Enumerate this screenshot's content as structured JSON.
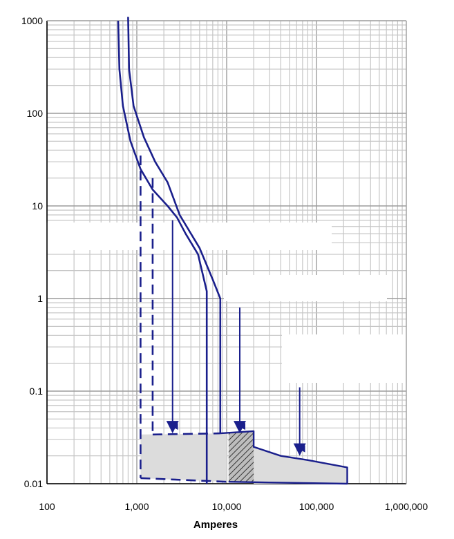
{
  "chart_data": {
    "type": "line",
    "title": "",
    "xlabel": "Amperes",
    "ylabel": "",
    "x_scale": "log",
    "y_scale": "log",
    "xlim": [
      100,
      1000000
    ],
    "ylim": [
      0.01,
      1000
    ],
    "grid": true,
    "x_ticks": [
      {
        "value": 100,
        "label": "100"
      },
      {
        "value": 1000,
        "label": "1,000"
      },
      {
        "value": 10000,
        "label": "10,000"
      },
      {
        "value": 100000,
        "label": "100,000"
      },
      {
        "value": 1000000,
        "label": "1,000,000"
      }
    ],
    "y_ticks": [
      {
        "value": 1000,
        "label": "1000"
      },
      {
        "value": 100,
        "label": "100"
      },
      {
        "value": 10,
        "label": "10"
      },
      {
        "value": 1,
        "label": "1"
      },
      {
        "value": 0.1,
        "label": "0.1"
      },
      {
        "value": 0.01,
        "label": "0.01"
      }
    ],
    "line_color": "#1a1f8c",
    "band_color": "#dcdcdc",
    "series": [
      {
        "style": "solid",
        "points": [
          [
            620,
            1000
          ],
          [
            640,
            300
          ],
          [
            700,
            120
          ],
          [
            850,
            50
          ],
          [
            1100,
            25
          ],
          [
            1500,
            15
          ],
          [
            2200,
            10
          ],
          [
            2800,
            7.5
          ],
          [
            3500,
            5
          ],
          [
            4800,
            3
          ],
          [
            6000,
            1.2
          ],
          [
            6000,
            0.01
          ]
        ]
      },
      {
        "style": "solid",
        "points": [
          [
            800,
            1100
          ],
          [
            820,
            300
          ],
          [
            920,
            120
          ],
          [
            1200,
            55
          ],
          [
            1600,
            30
          ],
          [
            2200,
            18
          ],
          [
            3000,
            8
          ],
          [
            5000,
            3.5
          ],
          [
            7000,
            1.6
          ],
          [
            8500,
            1.0
          ],
          [
            8500,
            0.035
          ]
        ]
      },
      {
        "style": "dashed",
        "points": [
          [
            1100,
            35
          ],
          [
            1100,
            0.0115
          ]
        ]
      },
      {
        "style": "dashed",
        "points": [
          [
            1500,
            20
          ],
          [
            1500,
            0.034
          ]
        ]
      },
      {
        "style": "dashed",
        "points": [
          [
            1100,
            0.0115
          ],
          [
            10000,
            0.0105
          ]
        ]
      },
      {
        "style": "dashed",
        "points": [
          [
            1500,
            0.034
          ],
          [
            8500,
            0.035
          ]
        ]
      }
    ],
    "bands": [
      {
        "fill": "solid",
        "points": [
          [
            1100,
            0.034
          ],
          [
            10000,
            0.035
          ],
          [
            10000,
            0.0105
          ],
          [
            1100,
            0.0115
          ]
        ]
      },
      {
        "fill": "solid",
        "points": [
          [
            20000,
            0.025
          ],
          [
            40000,
            0.02
          ],
          [
            80000,
            0.018
          ],
          [
            220000,
            0.015
          ],
          [
            220000,
            0.01
          ],
          [
            20000,
            0.01
          ]
        ]
      },
      {
        "fill": "hatched",
        "points": [
          [
            10500,
            0.035
          ],
          [
            20000,
            0.037
          ],
          [
            20000,
            0.0105
          ],
          [
            10500,
            0.0105
          ]
        ]
      }
    ],
    "band_outline": [
      [
        [
          8500,
          0.035
        ],
        [
          20000,
          0.037
        ],
        [
          20000,
          0.025
        ],
        [
          40000,
          0.02
        ],
        [
          80000,
          0.018
        ],
        [
          220000,
          0.015
        ],
        [
          220000,
          0.01
        ],
        [
          10500,
          0.0105
        ]
      ]
    ],
    "arrows": [
      {
        "x": 2500,
        "from_y": 7.0,
        "to_y": 0.035
      },
      {
        "x": 14000,
        "from_y": 0.8,
        "to_y": 0.035
      },
      {
        "x": 65000,
        "from_y": 0.11,
        "to_y": 0.02
      }
    ]
  }
}
